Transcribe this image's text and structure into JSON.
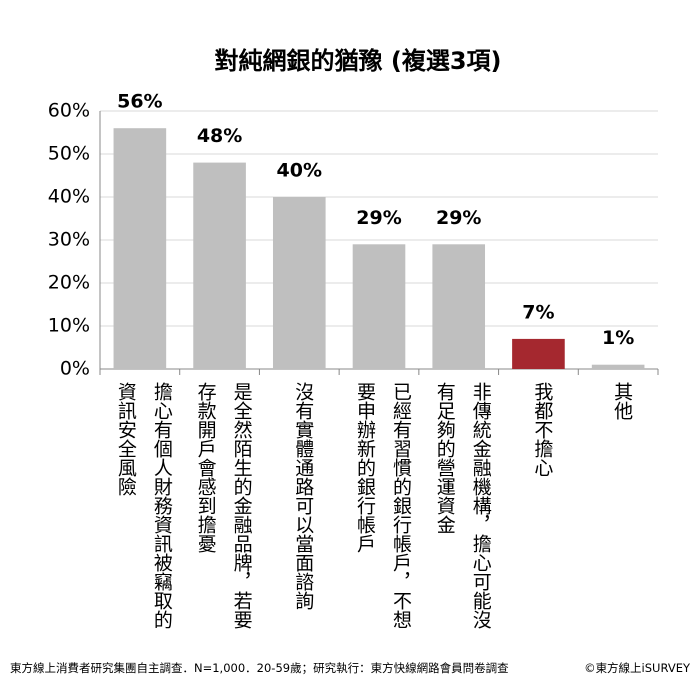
{
  "chart_data": {
    "type": "bar",
    "title": "對純網銀的猶豫 (複選3項)",
    "categories": [
      "擔心有個人財務資訊被竊取的資訊安全風險",
      "是全然陌生的金融品牌，若要存款開戶會感到擔憂",
      "沒有實體通路可以當面諮詢",
      "已經有習慣的銀行帳戶，不想要申辦新的銀行帳戶",
      "非傳統金融機構，擔心可能沒有足夠的營運資金",
      "我都不擔心",
      "其他"
    ],
    "values": [
      56,
      48,
      40,
      29,
      29,
      7,
      1
    ],
    "value_labels": [
      "56%",
      "48%",
      "40%",
      "29%",
      "29%",
      "7%",
      "1%"
    ],
    "colors": [
      "#bfbfbf",
      "#bfbfbf",
      "#bfbfbf",
      "#bfbfbf",
      "#bfbfbf",
      "#a5282f",
      "#bfbfbf"
    ],
    "ylim": [
      0,
      60
    ],
    "yticks": [
      {
        "value": 0,
        "label": "0%"
      },
      {
        "value": 10,
        "label": "10%"
      },
      {
        "value": 20,
        "label": "20%"
      },
      {
        "value": 30,
        "label": "30%"
      },
      {
        "value": 40,
        "label": "40%"
      },
      {
        "value": 50,
        "label": "50%"
      },
      {
        "value": 60,
        "label": "60%"
      }
    ],
    "grid": true,
    "source": "東方線上消費者研究集團自主調查．N=1,000．20-59歲；研究執行：東方快線網路會員問卷調查",
    "credit": "©東方線上iSURVEY"
  }
}
